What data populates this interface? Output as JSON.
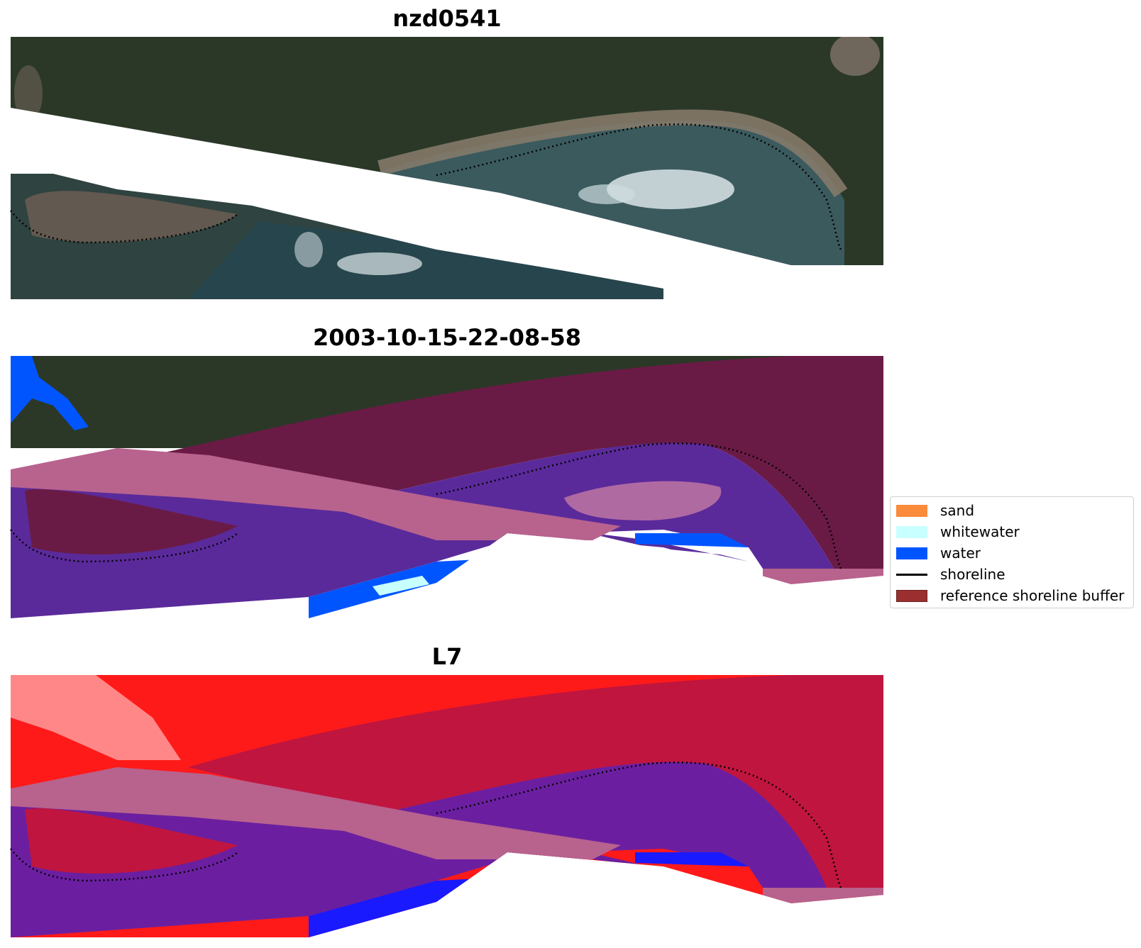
{
  "panels": [
    {
      "title": "nzd0541",
      "layer": "true-colour RGB image"
    },
    {
      "title": "2003-10-15-22-08-58",
      "layer": "classified image"
    },
    {
      "title": "L7",
      "layer": "MNDWI / water index image"
    }
  ],
  "legend": {
    "items": [
      {
        "label": "sand",
        "color": "#f98b3b",
        "kind": "patch"
      },
      {
        "label": "whitewater",
        "color": "#c8ffff",
        "kind": "patch"
      },
      {
        "label": "water",
        "color": "#0055ff",
        "kind": "patch"
      },
      {
        "label": "shoreline",
        "color": "#000000",
        "kind": "line"
      },
      {
        "label": "reference shoreline buffer",
        "color": "#9b2f2f",
        "kind": "patch"
      }
    ]
  },
  "colors": {
    "vegetation_dark": "#2b3828",
    "beach_tan": "#8a7c6c",
    "shallow_water": "#3b5a5e",
    "deep_water": "#1d3b45",
    "buffer_maroon": "#6a1b45",
    "buffer_pink": "#b8628e",
    "class_water_purple": "#5a2a9a",
    "class_water_blue": "#0055ff",
    "index_red": "#ff1a1a",
    "index_crimson": "#c0153f",
    "index_purple": "#6b1fa0",
    "index_blue": "#1a1aff"
  }
}
